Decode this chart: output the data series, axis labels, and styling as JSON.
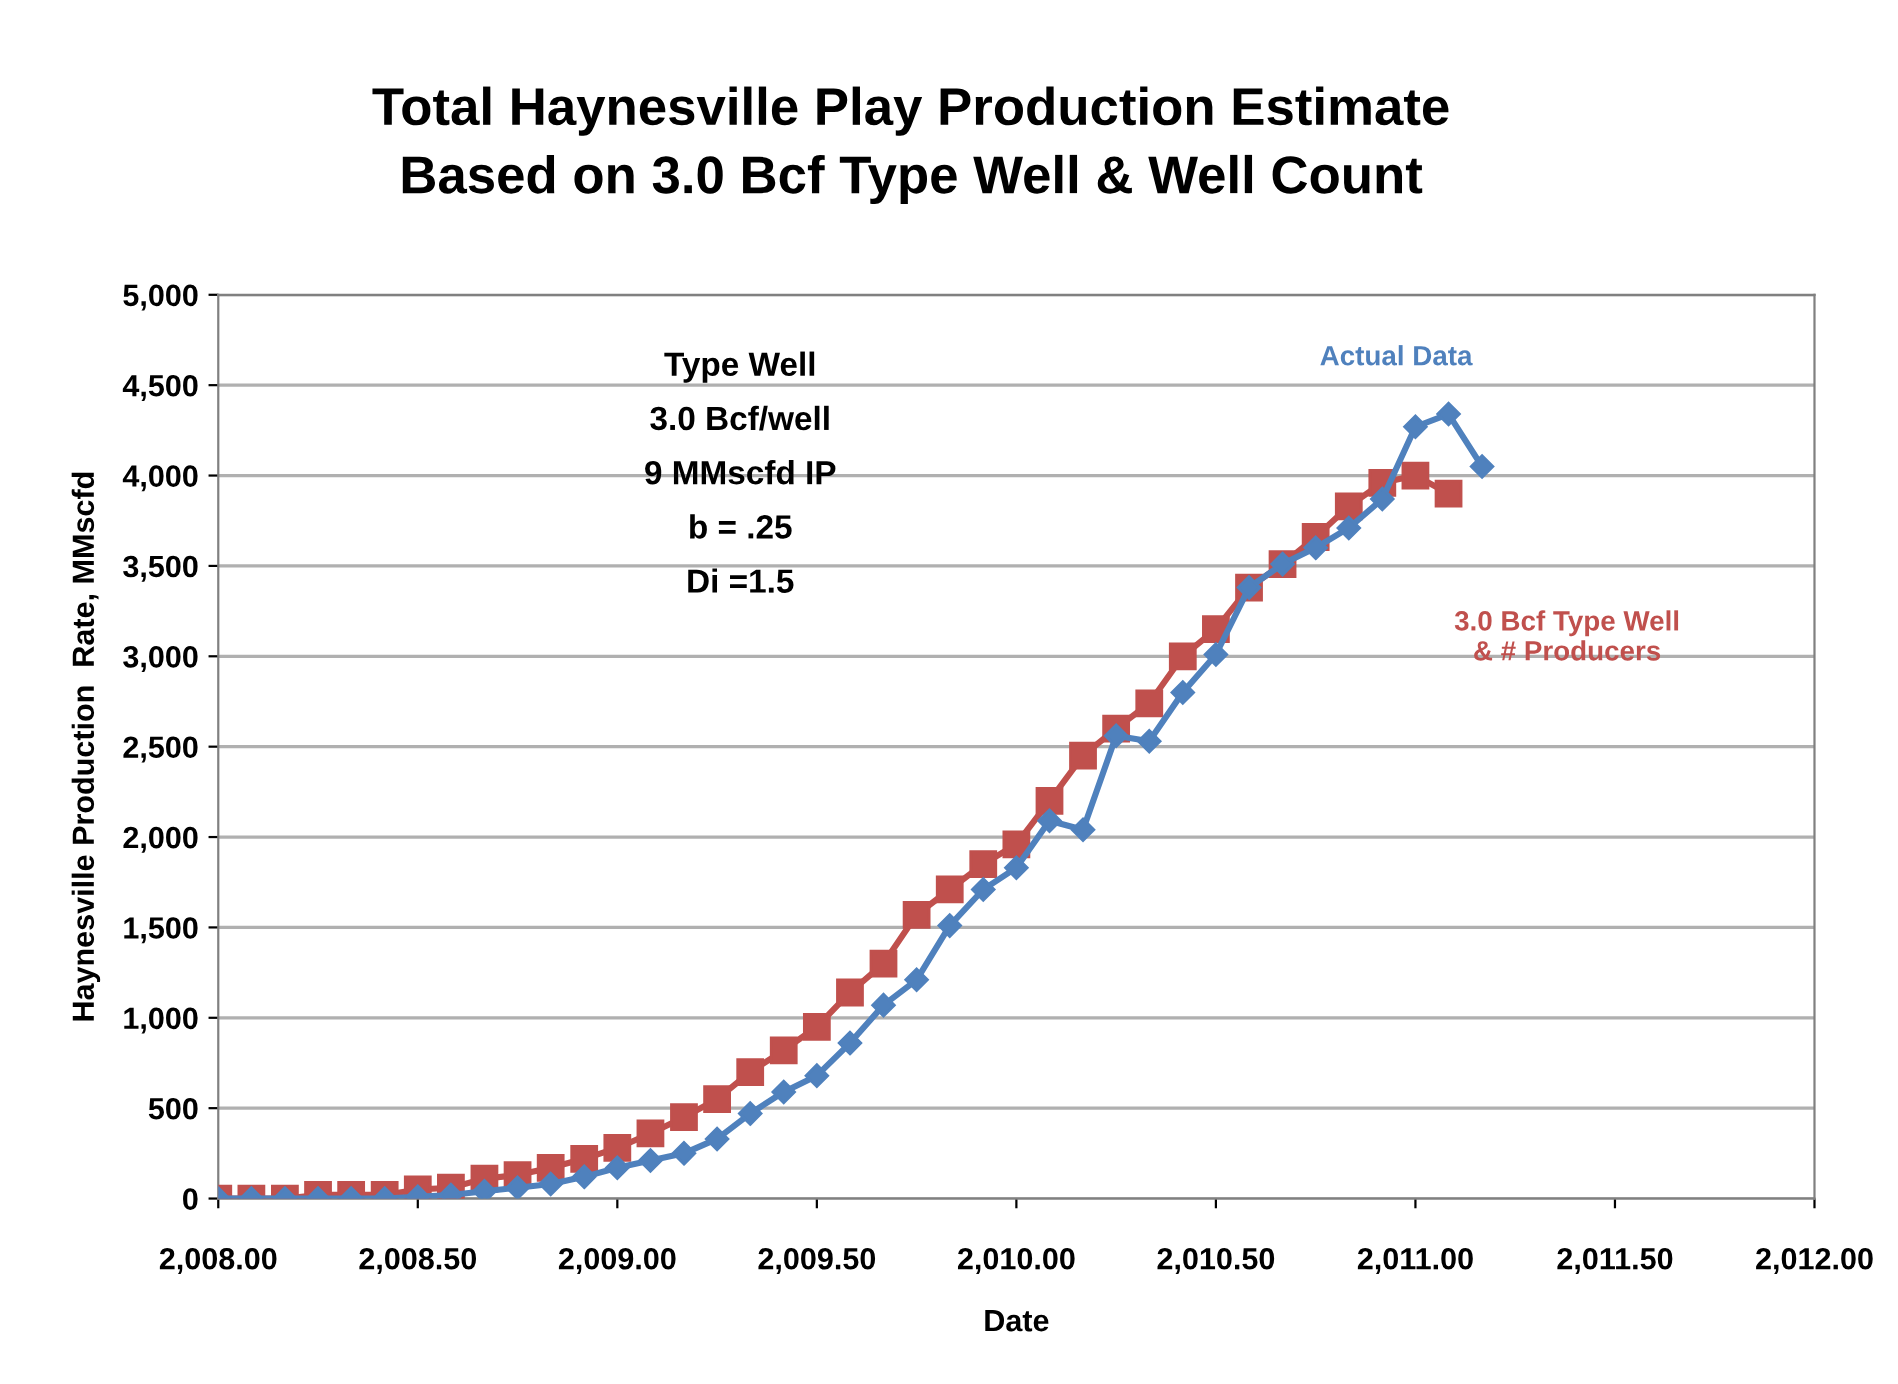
{
  "chart_data": {
    "type": "line",
    "title": "Total Haynesville Play Production Estimate\nBased on 3.0 Bcf Type Well & Well Count",
    "xlabel": "Date",
    "ylabel": "Haynesville Production  Rate, MMscfd",
    "xlim": [
      2008,
      2012
    ],
    "xticks": [
      {
        "value": 2008,
        "label": "2,008.00"
      },
      {
        "value": 2008.5,
        "label": "2,008.50"
      },
      {
        "value": 2009,
        "label": "2,009.00"
      },
      {
        "value": 2009.5,
        "label": "2,009.50"
      },
      {
        "value": 2010,
        "label": "2,010.00"
      },
      {
        "value": 2010.5,
        "label": "2,010.50"
      },
      {
        "value": 2011,
        "label": "2,011.00"
      },
      {
        "value": 2011.5,
        "label": "2,011.50"
      },
      {
        "value": 2012,
        "label": "2,012.00"
      }
    ],
    "ylim": [
      0,
      5000
    ],
    "yticks": [
      {
        "value": 0,
        "label": "0"
      },
      {
        "value": 500,
        "label": "500"
      },
      {
        "value": 1000,
        "label": "1,000"
      },
      {
        "value": 1500,
        "label": "1,500"
      },
      {
        "value": 2000,
        "label": "2,000"
      },
      {
        "value": 2500,
        "label": "2,500"
      },
      {
        "value": 3000,
        "label": "3,000"
      },
      {
        "value": 3500,
        "label": "3,500"
      },
      {
        "value": 4000,
        "label": "4,000"
      },
      {
        "value": 4500,
        "label": "4,500"
      },
      {
        "value": 5000,
        "label": "5,000"
      }
    ],
    "grid": "y",
    "legend": false,
    "annotations": [
      "Type Well",
      "3.0 Bcf/well",
      "9 MMscfd IP",
      "b = .25",
      "Di =1.5"
    ],
    "series": [
      {
        "name": "Actual Data",
        "color": "#4f81bd",
        "marker": "diamond",
        "x": [
          2008.0,
          2008.083,
          2008.167,
          2008.25,
          2008.333,
          2008.417,
          2008.5,
          2008.583,
          2008.667,
          2008.75,
          2008.833,
          2008.917,
          2009.0,
          2009.083,
          2009.167,
          2009.25,
          2009.333,
          2009.417,
          2009.5,
          2009.583,
          2009.667,
          2009.75,
          2009.833,
          2009.917,
          2010.0,
          2010.083,
          2010.167,
          2010.25,
          2010.333,
          2010.417,
          2010.5,
          2010.583,
          2010.667,
          2010.75,
          2010.833,
          2010.917,
          2011.0,
          2011.083,
          2011.167
        ],
        "values": [
          0,
          0,
          0,
          0,
          0,
          0,
          10,
          20,
          40,
          60,
          80,
          120,
          170,
          210,
          250,
          330,
          470,
          590,
          680,
          860,
          1070,
          1210,
          1510,
          1710,
          1830,
          2090,
          2040,
          2560,
          2530,
          2800,
          3010,
          3380,
          3510,
          3600,
          3710,
          3870,
          4270,
          4340,
          4050
        ]
      },
      {
        "name": "3.0 Bcf Type Well\n& # Producers",
        "color": "#c0504d",
        "marker": "square",
        "x": [
          2008.0,
          2008.083,
          2008.167,
          2008.25,
          2008.333,
          2008.417,
          2008.5,
          2008.583,
          2008.667,
          2008.75,
          2008.833,
          2008.917,
          2009.0,
          2009.083,
          2009.167,
          2009.25,
          2009.333,
          2009.417,
          2009.5,
          2009.583,
          2009.667,
          2009.75,
          2009.833,
          2009.917,
          2010.0,
          2010.083,
          2010.167,
          2010.25,
          2010.333,
          2010.417,
          2010.5,
          2010.583,
          2010.667,
          2010.75,
          2010.833,
          2010.917,
          2011.0,
          2011.083
        ],
        "values": [
          0,
          0,
          0,
          20,
          20,
          20,
          50,
          60,
          110,
          130,
          170,
          220,
          280,
          360,
          450,
          550,
          700,
          820,
          950,
          1140,
          1300,
          1570,
          1710,
          1850,
          1960,
          2200,
          2450,
          2600,
          2740,
          3000,
          3150,
          3380,
          3510,
          3660,
          3830,
          3960,
          4000,
          3900
        ]
      }
    ]
  }
}
